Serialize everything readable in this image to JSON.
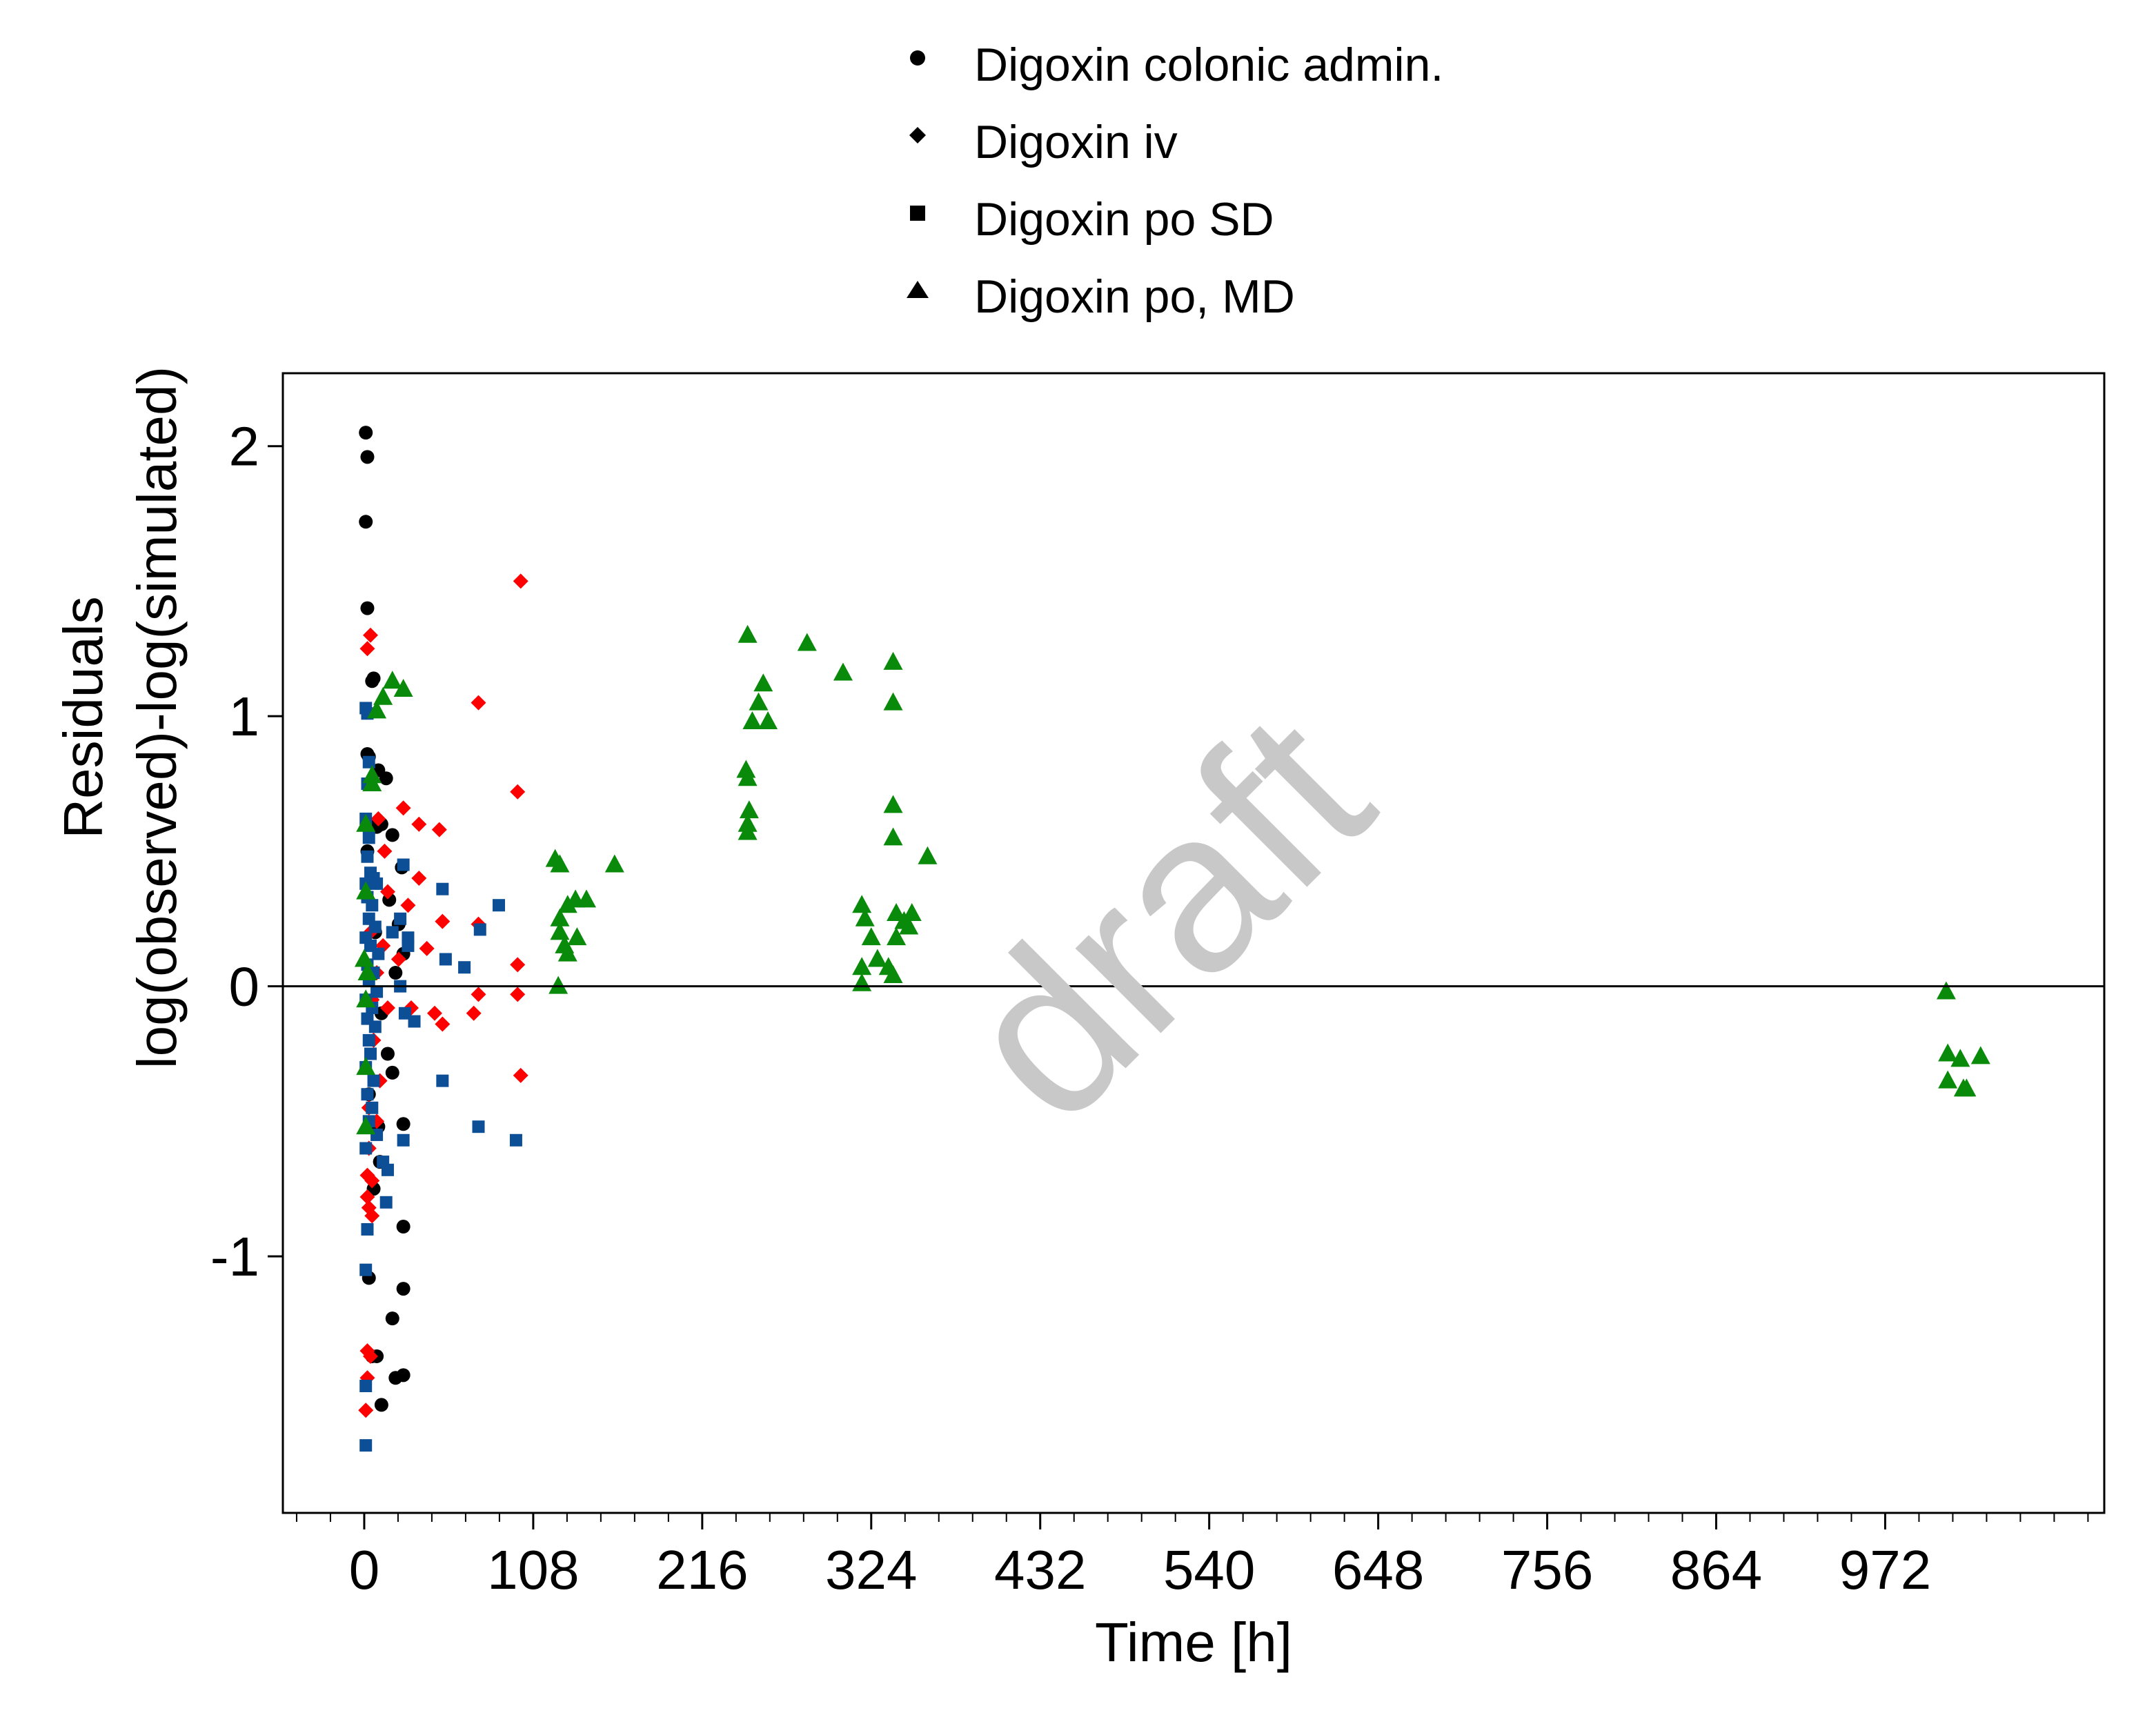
{
  "colors": {
    "colonic": "#000000",
    "iv": "#ff0000",
    "po_sd": "#0d4f96",
    "po_md": "#0a8a0a",
    "axis": "#000000",
    "watermark": "#c8c8c8"
  },
  "watermark": "draft",
  "chart_data": {
    "type": "scatter",
    "xlabel": "Time [h]",
    "ylabel_line1": "Residuals",
    "ylabel_line2": "log(observed)-log(simulated)",
    "xlim": [
      -52,
      1112
    ],
    "ylim": [
      -1.95,
      2.27
    ],
    "xticks": [
      0,
      108,
      216,
      324,
      432,
      540,
      648,
      756,
      864,
      972
    ],
    "xtick_labels": [
      "0",
      "108",
      "216",
      "324",
      "432",
      "540",
      "648",
      "756",
      "864",
      "972"
    ],
    "yticks": [
      -1,
      0,
      1,
      2
    ],
    "ytick_labels": [
      "-1",
      "0",
      "1",
      "2"
    ],
    "reference_line_y": 0,
    "grid": false,
    "legend_placement": "top-center, outside plot",
    "series": [
      {
        "name": "Digoxin colonic admin.",
        "marker": "circle",
        "color_key": "colonic",
        "points": [
          [
            1,
            2.05
          ],
          [
            2,
            1.96
          ],
          [
            1,
            1.72
          ],
          [
            2,
            1.4
          ],
          [
            5,
            1.13
          ],
          [
            6,
            1.14
          ],
          [
            2,
            0.86
          ],
          [
            3,
            0.85
          ],
          [
            9,
            0.8
          ],
          [
            14,
            0.77
          ],
          [
            6,
            0.6
          ],
          [
            8,
            0.59
          ],
          [
            11,
            0.6
          ],
          [
            18,
            0.56
          ],
          [
            2,
            0.5
          ],
          [
            24,
            0.44
          ],
          [
            16,
            0.32
          ],
          [
            22,
            0.23
          ],
          [
            7,
            0.2
          ],
          [
            25,
            0.12
          ],
          [
            20,
            0.05
          ],
          [
            11,
            -0.1
          ],
          [
            15,
            -0.25
          ],
          [
            18,
            -0.32
          ],
          [
            3,
            -0.4
          ],
          [
            9,
            -0.52
          ],
          [
            25,
            -0.51
          ],
          [
            10,
            -0.65
          ],
          [
            6,
            -0.75
          ],
          [
            25,
            -0.89
          ],
          [
            3,
            -1.08
          ],
          [
            25,
            -1.12
          ],
          [
            18,
            -1.23
          ],
          [
            5,
            -1.37
          ],
          [
            8,
            -1.37
          ],
          [
            20,
            -1.45
          ],
          [
            25,
            -1.44
          ],
          [
            11,
            -1.55
          ]
        ]
      },
      {
        "name": "Digoxin iv",
        "marker": "diamond",
        "color_key": "iv",
        "points": [
          [
            100,
            1.5
          ],
          [
            4,
            1.3
          ],
          [
            2,
            1.25
          ],
          [
            73,
            1.05
          ],
          [
            98,
            0.72
          ],
          [
            9,
            0.62
          ],
          [
            25,
            0.66
          ],
          [
            35,
            0.6
          ],
          [
            48,
            0.58
          ],
          [
            13,
            0.5
          ],
          [
            5,
            0.4
          ],
          [
            35,
            0.4
          ],
          [
            15,
            0.35
          ],
          [
            28,
            0.3
          ],
          [
            50,
            0.24
          ],
          [
            73,
            0.23
          ],
          [
            4,
            0.2
          ],
          [
            12,
            0.15
          ],
          [
            40,
            0.14
          ],
          [
            22,
            0.1
          ],
          [
            98,
            0.08
          ],
          [
            8,
            0.05
          ],
          [
            5,
            -0.05
          ],
          [
            73,
            -0.03
          ],
          [
            98,
            -0.03
          ],
          [
            15,
            -0.08
          ],
          [
            30,
            -0.08
          ],
          [
            45,
            -0.1
          ],
          [
            50,
            -0.14
          ],
          [
            70,
            -0.1
          ],
          [
            6,
            -0.2
          ],
          [
            10,
            -0.35
          ],
          [
            100,
            -0.33
          ],
          [
            3,
            -0.45
          ],
          [
            8,
            -0.5
          ],
          [
            3,
            -0.6
          ],
          [
            2,
            -0.7
          ],
          [
            5,
            -0.72
          ],
          [
            2,
            -0.78
          ],
          [
            3,
            -0.82
          ],
          [
            5,
            -0.85
          ],
          [
            2,
            -1.35
          ],
          [
            4,
            -1.37
          ],
          [
            2,
            -1.45
          ],
          [
            1,
            -1.57
          ]
        ]
      },
      {
        "name": "Digoxin po SD",
        "marker": "square",
        "color_key": "po_sd",
        "points": [
          [
            1,
            1.03
          ],
          [
            2,
            1.01
          ],
          [
            3,
            0.83
          ],
          [
            2,
            0.75
          ],
          [
            1,
            0.62
          ],
          [
            3,
            0.55
          ],
          [
            2,
            0.48
          ],
          [
            4,
            0.42
          ],
          [
            6,
            0.4
          ],
          [
            1,
            0.38
          ],
          [
            8,
            0.38
          ],
          [
            2,
            0.33
          ],
          [
            5,
            0.3
          ],
          [
            3,
            0.25
          ],
          [
            7,
            0.22
          ],
          [
            1,
            0.18
          ],
          [
            4,
            0.15
          ],
          [
            9,
            0.12
          ],
          [
            2,
            0.08
          ],
          [
            6,
            0.05
          ],
          [
            3,
            0.02
          ],
          [
            8,
            -0.02
          ],
          [
            1,
            -0.05
          ],
          [
            5,
            -0.08
          ],
          [
            2,
            -0.12
          ],
          [
            7,
            -0.15
          ],
          [
            3,
            -0.2
          ],
          [
            4,
            -0.25
          ],
          [
            1,
            -0.3
          ],
          [
            6,
            -0.35
          ],
          [
            2,
            -0.4
          ],
          [
            5,
            -0.45
          ],
          [
            3,
            -0.5
          ],
          [
            8,
            -0.55
          ],
          [
            1,
            -0.6
          ],
          [
            12,
            -0.65
          ],
          [
            15,
            -0.68
          ],
          [
            14,
            -0.8
          ],
          [
            2,
            -0.9
          ],
          [
            1,
            -1.05
          ],
          [
            1,
            -1.48
          ],
          [
            1,
            -1.7
          ],
          [
            25,
            0.45
          ],
          [
            23,
            0.25
          ],
          [
            28,
            0.18
          ],
          [
            23,
            0.0
          ],
          [
            26,
            -0.1
          ],
          [
            32,
            -0.13
          ],
          [
            50,
            0.36
          ],
          [
            52,
            0.1
          ],
          [
            64,
            0.07
          ],
          [
            74,
            0.21
          ],
          [
            86,
            0.3
          ],
          [
            50,
            -0.35
          ],
          [
            73,
            -0.52
          ],
          [
            97,
            -0.57
          ],
          [
            25,
            -0.57
          ],
          [
            28,
            0.15
          ],
          [
            18,
            0.2
          ]
        ]
      },
      {
        "name": "Digoxin po, MD",
        "marker": "triangle",
        "color_key": "po_md",
        "points": [
          [
            1,
            0.6
          ],
          [
            1,
            0.35
          ],
          [
            0,
            0.1
          ],
          [
            1,
            -0.05
          ],
          [
            1,
            -0.3
          ],
          [
            1,
            -0.52
          ],
          [
            5,
            0.75
          ],
          [
            5,
            0.78
          ],
          [
            2,
            0.05
          ],
          [
            8,
            1.02
          ],
          [
            12,
            1.07
          ],
          [
            18,
            1.13
          ],
          [
            25,
            1.1
          ],
          [
            125,
            0.45
          ],
          [
            122,
            0.47
          ],
          [
            125,
            0.25
          ],
          [
            130,
            0.3
          ],
          [
            125,
            0.2
          ],
          [
            135,
            0.32
          ],
          [
            142,
            0.32
          ],
          [
            136,
            0.18
          ],
          [
            128,
            0.15
          ],
          [
            130,
            0.12
          ],
          [
            124,
            0.0
          ],
          [
            160,
            0.45
          ],
          [
            245,
            1.3
          ],
          [
            255,
            1.12
          ],
          [
            252,
            1.05
          ],
          [
            248,
            0.98
          ],
          [
            258,
            0.98
          ],
          [
            244,
            0.8
          ],
          [
            245,
            0.77
          ],
          [
            246,
            0.65
          ],
          [
            245,
            0.57
          ],
          [
            245,
            0.6
          ],
          [
            283,
            1.27
          ],
          [
            306,
            1.16
          ],
          [
            338,
            1.2
          ],
          [
            338,
            1.05
          ],
          [
            338,
            0.67
          ],
          [
            338,
            0.55
          ],
          [
            360,
            0.48
          ],
          [
            318,
            0.3
          ],
          [
            320,
            0.25
          ],
          [
            324,
            0.18
          ],
          [
            328,
            0.1
          ],
          [
            335,
            0.07
          ],
          [
            340,
            0.27
          ],
          [
            345,
            0.24
          ],
          [
            350,
            0.27
          ],
          [
            340,
            0.18
          ],
          [
            348,
            0.22
          ],
          [
            338,
            0.04
          ],
          [
            318,
            0.07
          ],
          [
            318,
            0.01
          ],
          [
            1011,
            -0.02
          ],
          [
            1012,
            -0.25
          ],
          [
            1012,
            -0.35
          ],
          [
            1020,
            -0.27
          ],
          [
            1022,
            -0.38
          ],
          [
            1024,
            -0.38
          ],
          [
            1033,
            -0.26
          ]
        ]
      }
    ]
  }
}
